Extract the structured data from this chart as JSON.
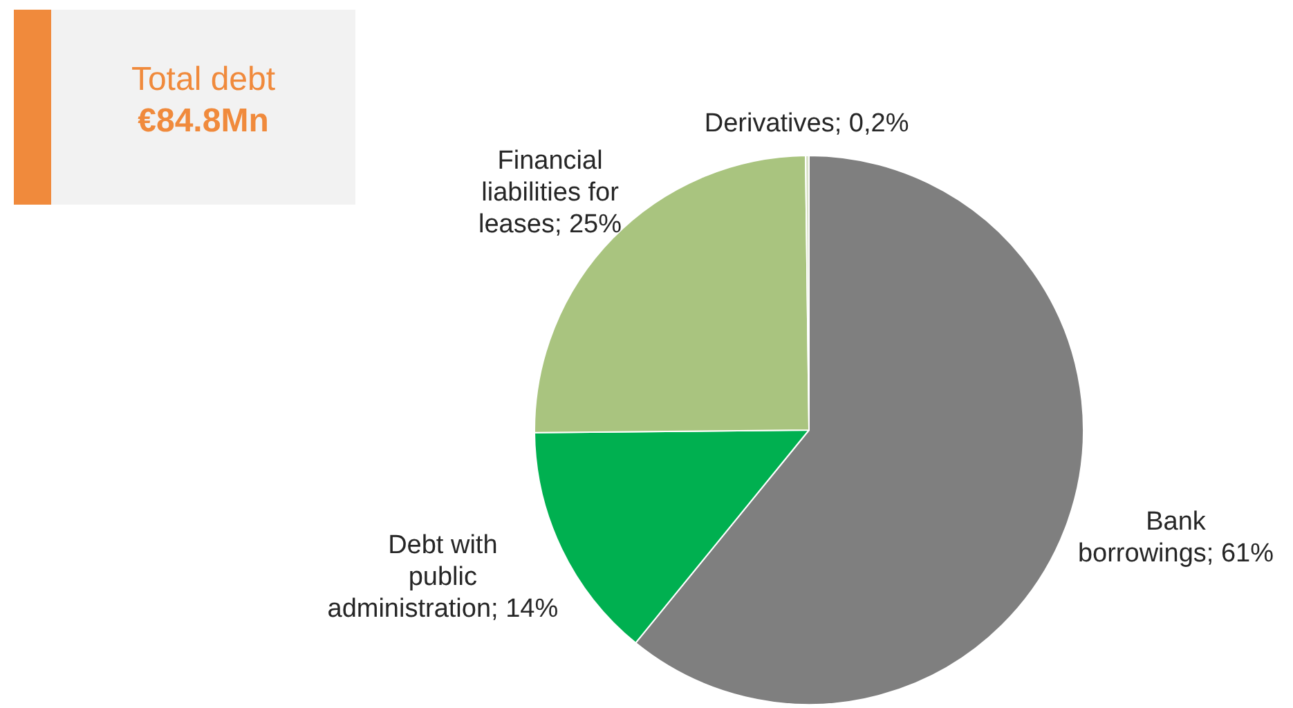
{
  "chart_data": {
    "type": "pie",
    "categories": [
      "Bank borrowings",
      "Debt with public administration",
      "Financial liabilities for leases",
      "Derivatives"
    ],
    "values": [
      61,
      14,
      25,
      0.2
    ],
    "colors": [
      "#7f7f7f",
      "#00b050",
      "#a9c47f",
      "#d9e3c8"
    ],
    "value_labels": [
      "61%",
      "14%",
      "25%",
      "0,2%"
    ],
    "annotations": [
      "Total debt",
      "€84.8Mn"
    ],
    "legend": false
  }
}
